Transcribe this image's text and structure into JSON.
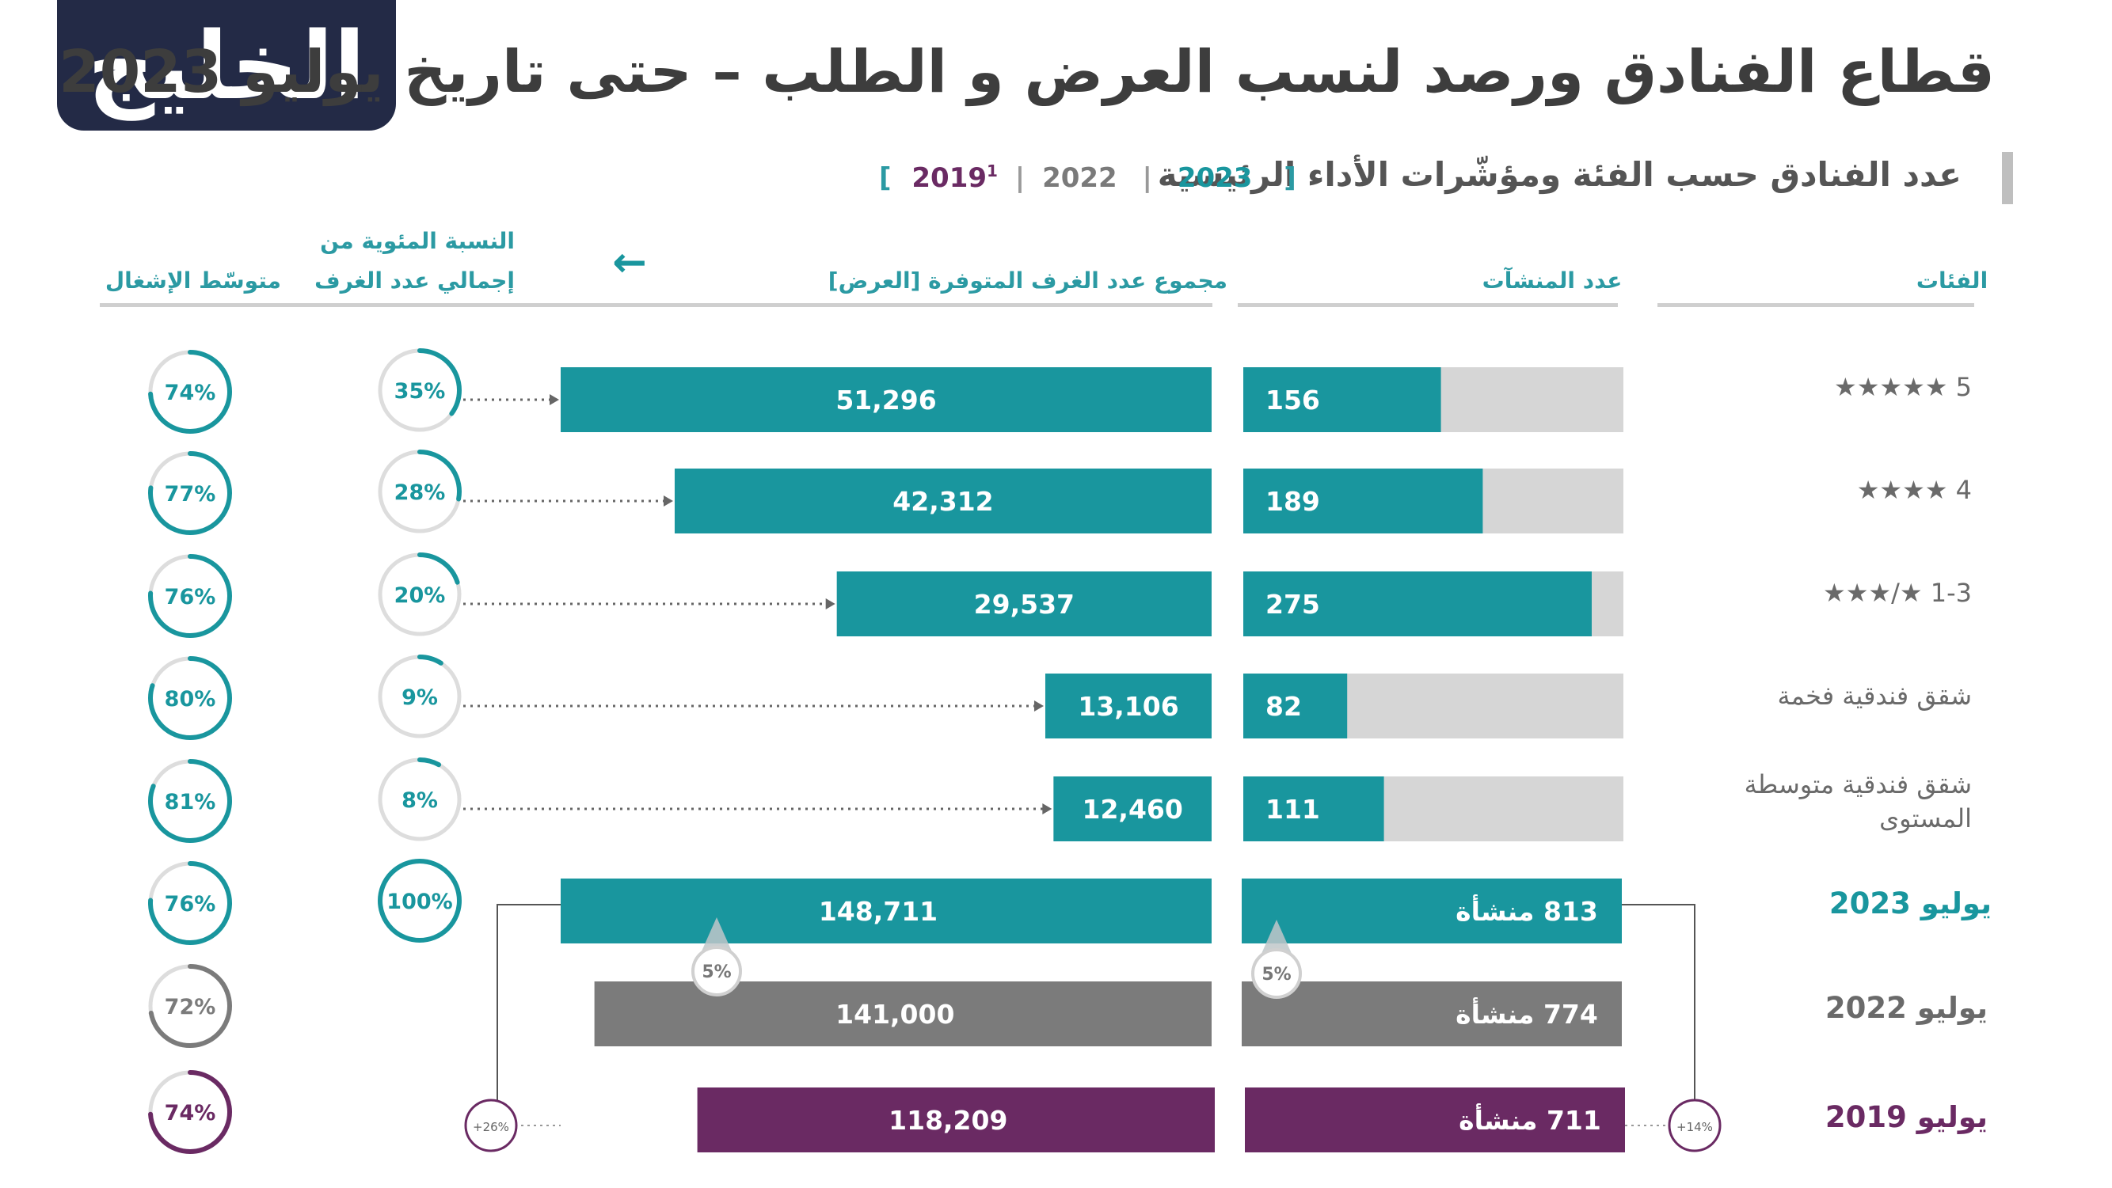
{
  "logo_text": "الخليج",
  "title": "قطاع الفنادق ورصد لنسب العرض و الطلب – حتى تاريخ يوليو 2023",
  "subtitle": "عدد الفنادق حسب الفئة ومؤشّرات الأداء الرئيسية",
  "legend": {
    "open": "[",
    "y2023": "2023",
    "y2022": "2022",
    "y2019": "2019",
    "y2019_sup": "1",
    "close": "]"
  },
  "headers": {
    "categories": "الفئات",
    "establishments": "عدد المنشآت",
    "rooms": "مجموع عدد الغرف المتوفرة [العرض]",
    "share_line1": "النسبة المئوية من",
    "share_line2": "إجمالي عدد الغرف",
    "occupancy": "متوسّط الإشغال",
    "arrow": "←"
  },
  "colors": {
    "teal": "#19969e",
    "gray": "#7b7b7b",
    "purple": "#6a2a63",
    "track": "#d6d6d6",
    "ring_track": "#dddddd",
    "header": "#2b9aa3"
  },
  "chart_data": {
    "type": "bar",
    "title": "عدد الفنادق حسب الفئة ومؤشّرات الأداء الرئيسية",
    "categories": [
      {
        "label": "5 ★★★★★",
        "establishments": 156,
        "establishments_label": "156",
        "rooms": 51296,
        "rooms_label": "51,296",
        "share_pct": 35,
        "share_label": "35%",
        "occupancy_pct": 74,
        "occupancy_label": "74%"
      },
      {
        "label": "4 ★★★★",
        "establishments": 189,
        "establishments_label": "189",
        "rooms": 42312,
        "rooms_label": "42,312",
        "share_pct": 28,
        "share_label": "28%",
        "occupancy_pct": 77,
        "occupancy_label": "77%"
      },
      {
        "label": "1-3 ★/★★★",
        "establishments": 275,
        "establishments_label": "275",
        "rooms": 29537,
        "rooms_label": "29,537",
        "share_pct": 20,
        "share_label": "20%",
        "occupancy_pct": 76,
        "occupancy_label": "76%"
      },
      {
        "label": "شقق فندقية فخمة",
        "establishments": 82,
        "establishments_label": "82",
        "rooms": 13106,
        "rooms_label": "13,106",
        "share_pct": 9,
        "share_label": "9%",
        "occupancy_pct": 80,
        "occupancy_label": "80%"
      },
      {
        "label_line1": "شقق فندقية متوسطة",
        "label_line2": "المستوى",
        "establishments": 111,
        "establishments_label": "111",
        "rooms": 12460,
        "rooms_label": "12,460",
        "share_pct": 8,
        "share_label": "8%",
        "occupancy_pct": 81,
        "occupancy_label": "81%"
      }
    ],
    "establishments_max": 300,
    "rooms_max": 51296,
    "totals": [
      {
        "label": "يوليو 2023",
        "year": 2023,
        "color": "teal",
        "establishments": 813,
        "establishments_label": "813 منشأة",
        "rooms": 148711,
        "rooms_label": "148,711",
        "share_pct": 100,
        "share_label": "100%",
        "occupancy_pct": 76,
        "occupancy_label": "76%"
      },
      {
        "label": "يوليو 2022",
        "year": 2022,
        "color": "gray",
        "establishments": 774,
        "establishments_label": "774 منشأة",
        "rooms": 141000,
        "rooms_label": "141,000",
        "occupancy_pct": 72,
        "occupancy_label": "72%"
      },
      {
        "label": "يوليو 2019",
        "year": 2019,
        "color": "purple",
        "establishments": 711,
        "establishments_label": "711 منشأة",
        "rooms": 118209,
        "rooms_label": "118,209",
        "occupancy_pct": 74,
        "occupancy_label": "74%"
      }
    ],
    "growth": {
      "rooms_2022_2023": "5%",
      "establishments_2022_2023": "5%",
      "rooms_2019_2023": "+26%",
      "establishments_2019_2023": "+14%"
    }
  }
}
